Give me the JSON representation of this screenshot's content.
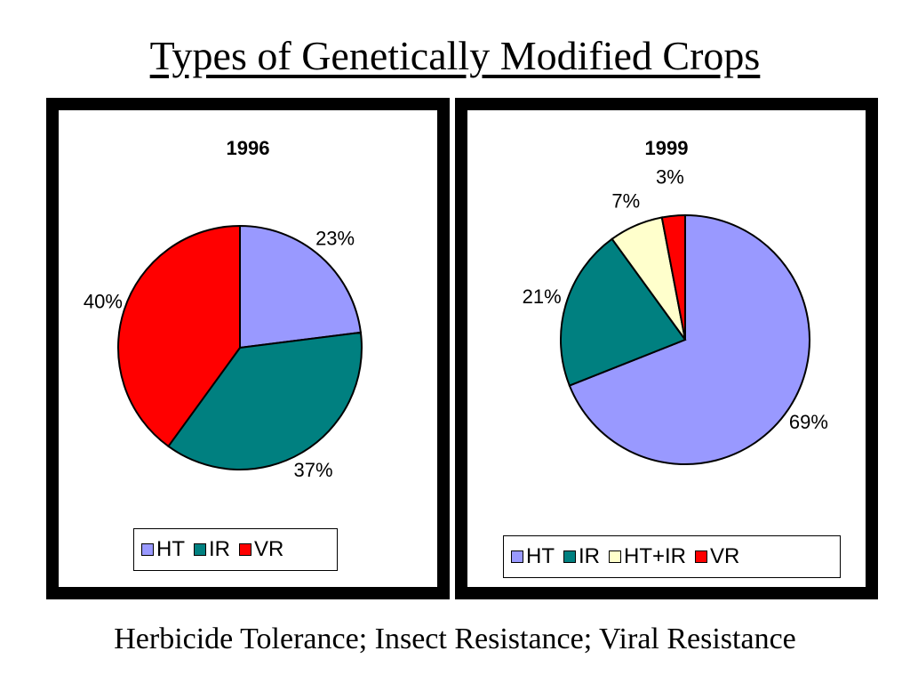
{
  "slide": {
    "title": "Types of Genetically Modified Crops",
    "footer": "Herbicide Tolerance; Insect Resistance; Viral Resistance"
  },
  "colors": {
    "HT": "#9999ff",
    "IR": "#008080",
    "HT+IR": "#ffffcc",
    "VR": "#ff0000"
  },
  "chart_data": [
    {
      "type": "pie",
      "title": "1996",
      "slices": [
        {
          "category": "HT",
          "value": 23,
          "label": "23%"
        },
        {
          "category": "IR",
          "value": 37,
          "label": "37%"
        },
        {
          "category": "VR",
          "value": 40,
          "label": "40%"
        }
      ],
      "legend": [
        "HT",
        "IR",
        "VR"
      ],
      "legend_position": "bottom"
    },
    {
      "type": "pie",
      "title": "1999",
      "slices": [
        {
          "category": "HT",
          "value": 69,
          "label": "69%"
        },
        {
          "category": "IR",
          "value": 21,
          "label": "21%"
        },
        {
          "category": "HT+IR",
          "value": 7,
          "label": "7%"
        },
        {
          "category": "VR",
          "value": 3,
          "label": "3%"
        }
      ],
      "legend": [
        "HT",
        "IR",
        "HT+IR",
        "VR"
      ],
      "legend_position": "bottom"
    }
  ]
}
